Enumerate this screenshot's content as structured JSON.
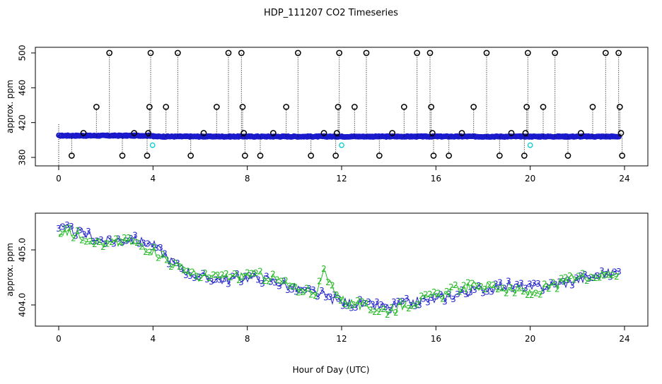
{
  "chart_data": [
    {
      "type": "scatter",
      "title": "HDP_111207  CO2 Timeseries",
      "ylabel": "approx. ppm",
      "xlabel": "",
      "xlim": [
        0,
        24
      ],
      "ylim": [
        360,
        505
      ],
      "x_ticks": [
        "0",
        "4",
        "8",
        "12",
        "16",
        "20",
        "24"
      ],
      "y_ticks": [
        "380",
        "420",
        "460",
        "500"
      ],
      "grid": false,
      "series": [
        {
          "color": "#1a1acc",
          "marker": "circle",
          "baseline": {
            "x_start": 0,
            "x_end": 23.8,
            "values_by_segment": [
              [
                0,
                405
              ],
              [
                4,
                404
              ],
              [
                12,
                404
              ],
              [
                16,
                404
              ],
              [
                24,
                404
              ]
            ]
          }
        },
        {
          "color": "#000000",
          "marker": "circle",
          "spikes": [
            {
              "x": 0.55,
              "y": 382
            },
            {
              "x": 1.05,
              "y": 408
            },
            {
              "x": 1.6,
              "y": 438
            },
            {
              "x": 2.15,
              "y": 500
            },
            {
              "x": 2.7,
              "y": 382
            },
            {
              "x": 3.2,
              "y": 408
            },
            {
              "x": 3.75,
              "y": 382
            },
            {
              "x": 3.8,
              "y": 408
            },
            {
              "x": 3.85,
              "y": 438
            },
            {
              "x": 3.9,
              "y": 500
            },
            {
              "x": 4.55,
              "y": 438
            },
            {
              "x": 5.05,
              "y": 500
            },
            {
              "x": 5.6,
              "y": 382
            },
            {
              "x": 6.15,
              "y": 408
            },
            {
              "x": 6.7,
              "y": 438
            },
            {
              "x": 7.2,
              "y": 500
            },
            {
              "x": 7.75,
              "y": 500
            },
            {
              "x": 7.8,
              "y": 438
            },
            {
              "x": 7.85,
              "y": 408
            },
            {
              "x": 7.9,
              "y": 382
            },
            {
              "x": 8.55,
              "y": 382
            },
            {
              "x": 9.1,
              "y": 408
            },
            {
              "x": 9.65,
              "y": 438
            },
            {
              "x": 10.15,
              "y": 500
            },
            {
              "x": 10.7,
              "y": 382
            },
            {
              "x": 11.25,
              "y": 408
            },
            {
              "x": 11.75,
              "y": 382
            },
            {
              "x": 11.8,
              "y": 408
            },
            {
              "x": 11.85,
              "y": 438
            },
            {
              "x": 11.9,
              "y": 500
            },
            {
              "x": 12.55,
              "y": 438
            },
            {
              "x": 13.05,
              "y": 500
            },
            {
              "x": 13.6,
              "y": 382
            },
            {
              "x": 14.15,
              "y": 408
            },
            {
              "x": 14.65,
              "y": 438
            },
            {
              "x": 15.2,
              "y": 500
            },
            {
              "x": 15.75,
              "y": 500
            },
            {
              "x": 15.8,
              "y": 438
            },
            {
              "x": 15.85,
              "y": 408
            },
            {
              "x": 15.9,
              "y": 382
            },
            {
              "x": 16.55,
              "y": 382
            },
            {
              "x": 17.1,
              "y": 408
            },
            {
              "x": 17.6,
              "y": 438
            },
            {
              "x": 18.15,
              "y": 500
            },
            {
              "x": 18.7,
              "y": 382
            },
            {
              "x": 19.2,
              "y": 408
            },
            {
              "x": 19.75,
              "y": 382
            },
            {
              "x": 19.8,
              "y": 408
            },
            {
              "x": 19.85,
              "y": 438
            },
            {
              "x": 19.9,
              "y": 500
            },
            {
              "x": 20.55,
              "y": 438
            },
            {
              "x": 21.05,
              "y": 500
            },
            {
              "x": 21.6,
              "y": 382
            },
            {
              "x": 22.15,
              "y": 408
            },
            {
              "x": 22.65,
              "y": 438
            },
            {
              "x": 23.2,
              "y": 500
            },
            {
              "x": 23.75,
              "y": 500
            },
            {
              "x": 23.8,
              "y": 438
            },
            {
              "x": 23.85,
              "y": 408
            },
            {
              "x": 23.9,
              "y": 382
            }
          ]
        },
        {
          "color": "#00cccc",
          "marker": "circle",
          "points": [
            {
              "x": 3.98,
              "y": 394
            },
            {
              "x": 12.0,
              "y": 394
            },
            {
              "x": 20.0,
              "y": 394
            }
          ]
        }
      ]
    },
    {
      "type": "scatter",
      "title": "",
      "ylabel": "approx. ppm",
      "xlabel": "Hour of Day (UTC)",
      "xlim": [
        0,
        24
      ],
      "ylim": [
        403.7,
        405.55
      ],
      "x_ticks": [
        "0",
        "4",
        "8",
        "12",
        "16",
        "20",
        "24"
      ],
      "y_ticks": [
        "404.0",
        "405.0"
      ],
      "grid": false,
      "series": [
        {
          "label_glyph": "3",
          "color": "#2222cc",
          "trend": [
            [
              0,
              405.4
            ],
            [
              1,
              405.3
            ],
            [
              2,
              405.15
            ],
            [
              3,
              405.2
            ],
            [
              4,
              405.1
            ],
            [
              4.5,
              404.9
            ],
            [
              5,
              404.7
            ],
            [
              6,
              404.5
            ],
            [
              7,
              404.45
            ],
            [
              8,
              404.5
            ],
            [
              9,
              404.45
            ],
            [
              10,
              404.3
            ],
            [
              11,
              404.2
            ],
            [
              12,
              404.05
            ],
            [
              13,
              404.0
            ],
            [
              14,
              403.95
            ],
            [
              15,
              404.05
            ],
            [
              16,
              404.1
            ],
            [
              17,
              404.2
            ],
            [
              18,
              404.3
            ],
            [
              19,
              404.35
            ],
            [
              20,
              404.3
            ],
            [
              21,
              404.35
            ],
            [
              22,
              404.45
            ],
            [
              23,
              404.55
            ],
            [
              23.8,
              404.6
            ]
          ]
        },
        {
          "label_glyph": "2",
          "color": "#22bb22",
          "trend": [
            [
              0,
              405.35
            ],
            [
              1,
              405.25
            ],
            [
              2,
              405.1
            ],
            [
              3,
              405.15
            ],
            [
              4,
              405.0
            ],
            [
              4.5,
              404.85
            ],
            [
              5,
              404.7
            ],
            [
              6,
              404.5
            ],
            [
              7,
              404.5
            ],
            [
              8,
              404.55
            ],
            [
              9,
              404.5
            ],
            [
              10,
              404.3
            ],
            [
              11,
              404.25
            ],
            [
              11.2,
              404.6
            ],
            [
              12,
              404.1
            ],
            [
              13,
              403.95
            ],
            [
              14,
              403.9
            ],
            [
              15,
              404.05
            ],
            [
              16,
              404.15
            ],
            [
              17,
              404.3
            ],
            [
              18,
              404.35
            ],
            [
              19,
              404.3
            ],
            [
              20,
              404.2
            ],
            [
              21,
              404.35
            ],
            [
              22,
              404.5
            ],
            [
              23,
              404.55
            ],
            [
              23.8,
              404.6
            ]
          ]
        }
      ]
    }
  ]
}
